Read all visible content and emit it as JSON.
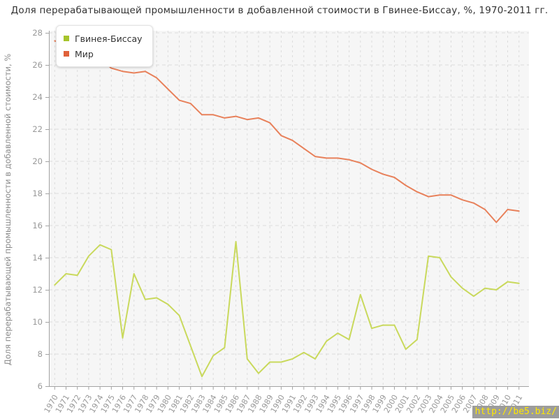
{
  "title": "Доля перерабатывающей промышленности в добавленной стоимости в Гвинее-Биссау, %, 1970-2011 гг.",
  "watermark": "http://be5.biz/",
  "colors": {
    "guinea_line": "#c9d95c",
    "guinea_marker": "#a6c42c",
    "world_line": "#e8815b",
    "world_marker": "#e0613a",
    "plot_bg": "#f6f6f6",
    "grid": "#dcdcdc",
    "axis": "#a3a3a3",
    "tick_label": "#999999",
    "axis_title": "#8c8c8c",
    "title_text": "#333333",
    "watermark_bg": "#9c9c9c",
    "watermark_text": "#ffe800"
  },
  "chart_data": {
    "type": "line",
    "title": "Доля перерабатывающей промышленности в добавленной стоимости в Гвинее-Биссау, %, 1970-2011 гг.",
    "xlabel": "",
    "ylabel": "Доля перерабатывающей промышленности в добавленной стоимости, %",
    "ylim": [
      6,
      28
    ],
    "ytick_step": 2,
    "grid": true,
    "legend_position": "top-left",
    "x": [
      1970,
      1971,
      1972,
      1973,
      1974,
      1975,
      1976,
      1977,
      1978,
      1979,
      1980,
      1981,
      1982,
      1983,
      1984,
      1985,
      1986,
      1987,
      1988,
      1989,
      1990,
      1991,
      1992,
      1993,
      1994,
      1995,
      1996,
      1997,
      1998,
      1999,
      2000,
      2001,
      2002,
      2003,
      2004,
      2005,
      2006,
      2007,
      2008,
      2009,
      2010,
      2011
    ],
    "series": [
      {
        "name": "Гвинея-Биссау",
        "values": [
          12.3,
          13.0,
          12.9,
          14.1,
          14.8,
          14.5,
          9.0,
          13.0,
          11.4,
          11.5,
          11.1,
          10.4,
          8.5,
          6.6,
          7.9,
          8.4,
          15.0,
          7.7,
          6.8,
          7.5,
          7.5,
          7.7,
          8.1,
          7.7,
          8.8,
          9.3,
          8.9,
          11.7,
          9.6,
          9.8,
          9.8,
          8.3,
          8.9,
          14.1,
          14.0,
          12.8,
          12.1,
          11.6,
          12.1,
          12.0,
          12.5,
          12.4
        ]
      },
      {
        "name": "Мир",
        "values": [
          27.5,
          27.3,
          27.2,
          27.0,
          26.4,
          25.8,
          25.6,
          25.5,
          25.6,
          25.2,
          24.5,
          23.8,
          23.6,
          22.9,
          22.9,
          22.7,
          22.8,
          22.6,
          22.7,
          22.4,
          21.6,
          21.3,
          20.8,
          20.3,
          20.2,
          20.2,
          20.1,
          19.9,
          19.5,
          19.2,
          19.0,
          18.5,
          18.1,
          17.8,
          17.9,
          17.9,
          17.6,
          17.4,
          17.0,
          16.2,
          17.0,
          16.9
        ]
      }
    ]
  }
}
